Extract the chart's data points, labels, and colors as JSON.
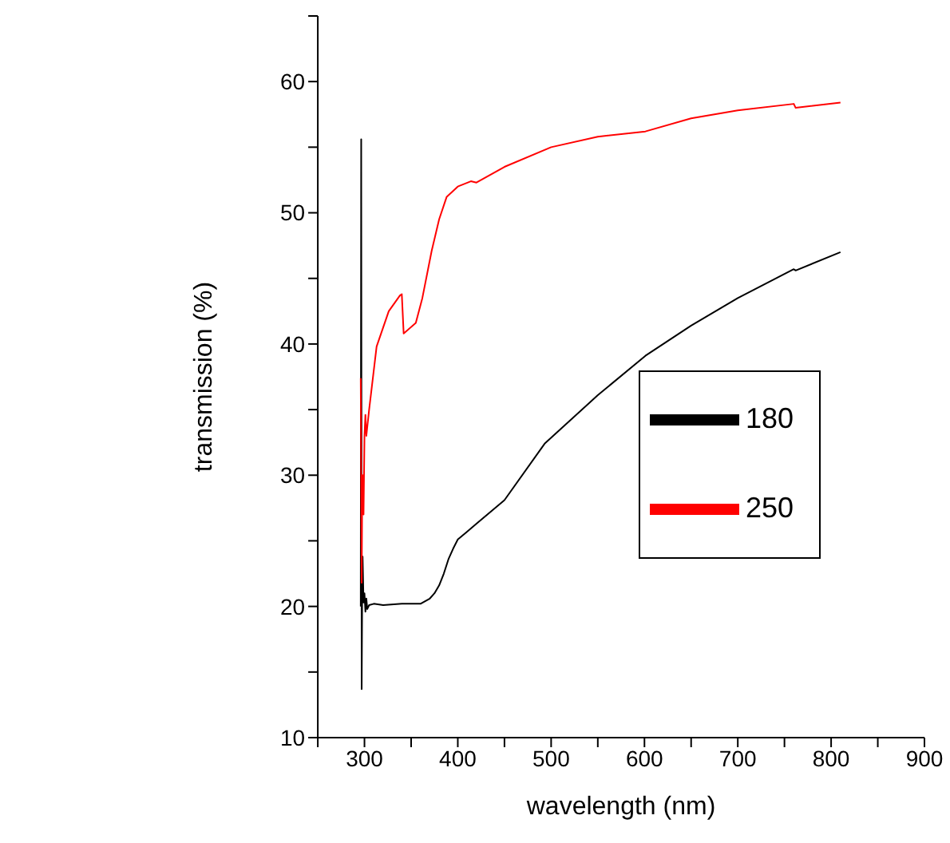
{
  "chart_data": {
    "type": "line",
    "xlabel": "wavelength (nm)",
    "ylabel": "transmission (%)",
    "xlim": [
      250,
      900
    ],
    "ylim": [
      10,
      65
    ],
    "xticks": [
      {
        "value": 250,
        "label": null
      },
      300,
      {
        "value": 350,
        "label": null
      },
      400,
      {
        "value": 450,
        "label": null
      },
      500,
      {
        "value": 550,
        "label": null
      },
      600,
      {
        "value": 650,
        "label": null
      },
      700,
      {
        "value": 750,
        "label": null
      },
      800,
      {
        "value": 850,
        "label": null
      },
      900
    ],
    "yticks": [
      10,
      {
        "value": 15,
        "label": null
      },
      20,
      {
        "value": 25,
        "label": null
      },
      30,
      {
        "value": 35,
        "label": null
      },
      40,
      {
        "value": 45,
        "label": null
      },
      50,
      {
        "value": 55,
        "label": null
      },
      60,
      {
        "value": 65,
        "label": null
      }
    ],
    "grid": false,
    "legend": "right",
    "marker": "none",
    "line_style": "solid",
    "series": [
      {
        "name": "180",
        "color": "#000000",
        "x": [
          296,
          296.5,
          297,
          297.5,
          298,
          299,
          300,
          301,
          302,
          303,
          305,
          310,
          320,
          340,
          360,
          370,
          375,
          380,
          385,
          390,
          395,
          400,
          410,
          420,
          450,
          493,
          550,
          601,
          650,
          700,
          760,
          762,
          810
        ],
        "values": [
          20,
          55.6,
          13.7,
          20.5,
          23.8,
          20.3,
          21,
          19.6,
          20.6,
          19.8,
          20.1,
          20.2,
          20.1,
          20.2,
          20.2,
          20.6,
          21,
          21.6,
          22.5,
          23.6,
          24.4,
          25.1,
          25.7,
          26.3,
          28.1,
          32.4,
          36.1,
          39.1,
          41.4,
          43.5,
          45.7,
          45.6,
          47
        ]
      },
      {
        "name": "250",
        "color": "#ff0000",
        "x": [
          296,
          296.5,
          297,
          297.5,
          298,
          299,
          300,
          301,
          302,
          305,
          313,
          326,
          338,
          340,
          342,
          355,
          362,
          372,
          380,
          388,
          400,
          414,
          420,
          450,
          500,
          550,
          601,
          650,
          700,
          760,
          762,
          810
        ],
        "values": [
          37.4,
          30,
          21.8,
          28,
          30,
          27,
          33,
          34.6,
          33,
          35,
          39.8,
          42.5,
          43.7,
          43.8,
          40.8,
          41.6,
          43.5,
          47.1,
          49.5,
          51.2,
          52,
          52.4,
          52.3,
          53.5,
          55,
          55.8,
          56.2,
          57.2,
          57.8,
          58.3,
          58,
          58.4
        ]
      }
    ]
  }
}
